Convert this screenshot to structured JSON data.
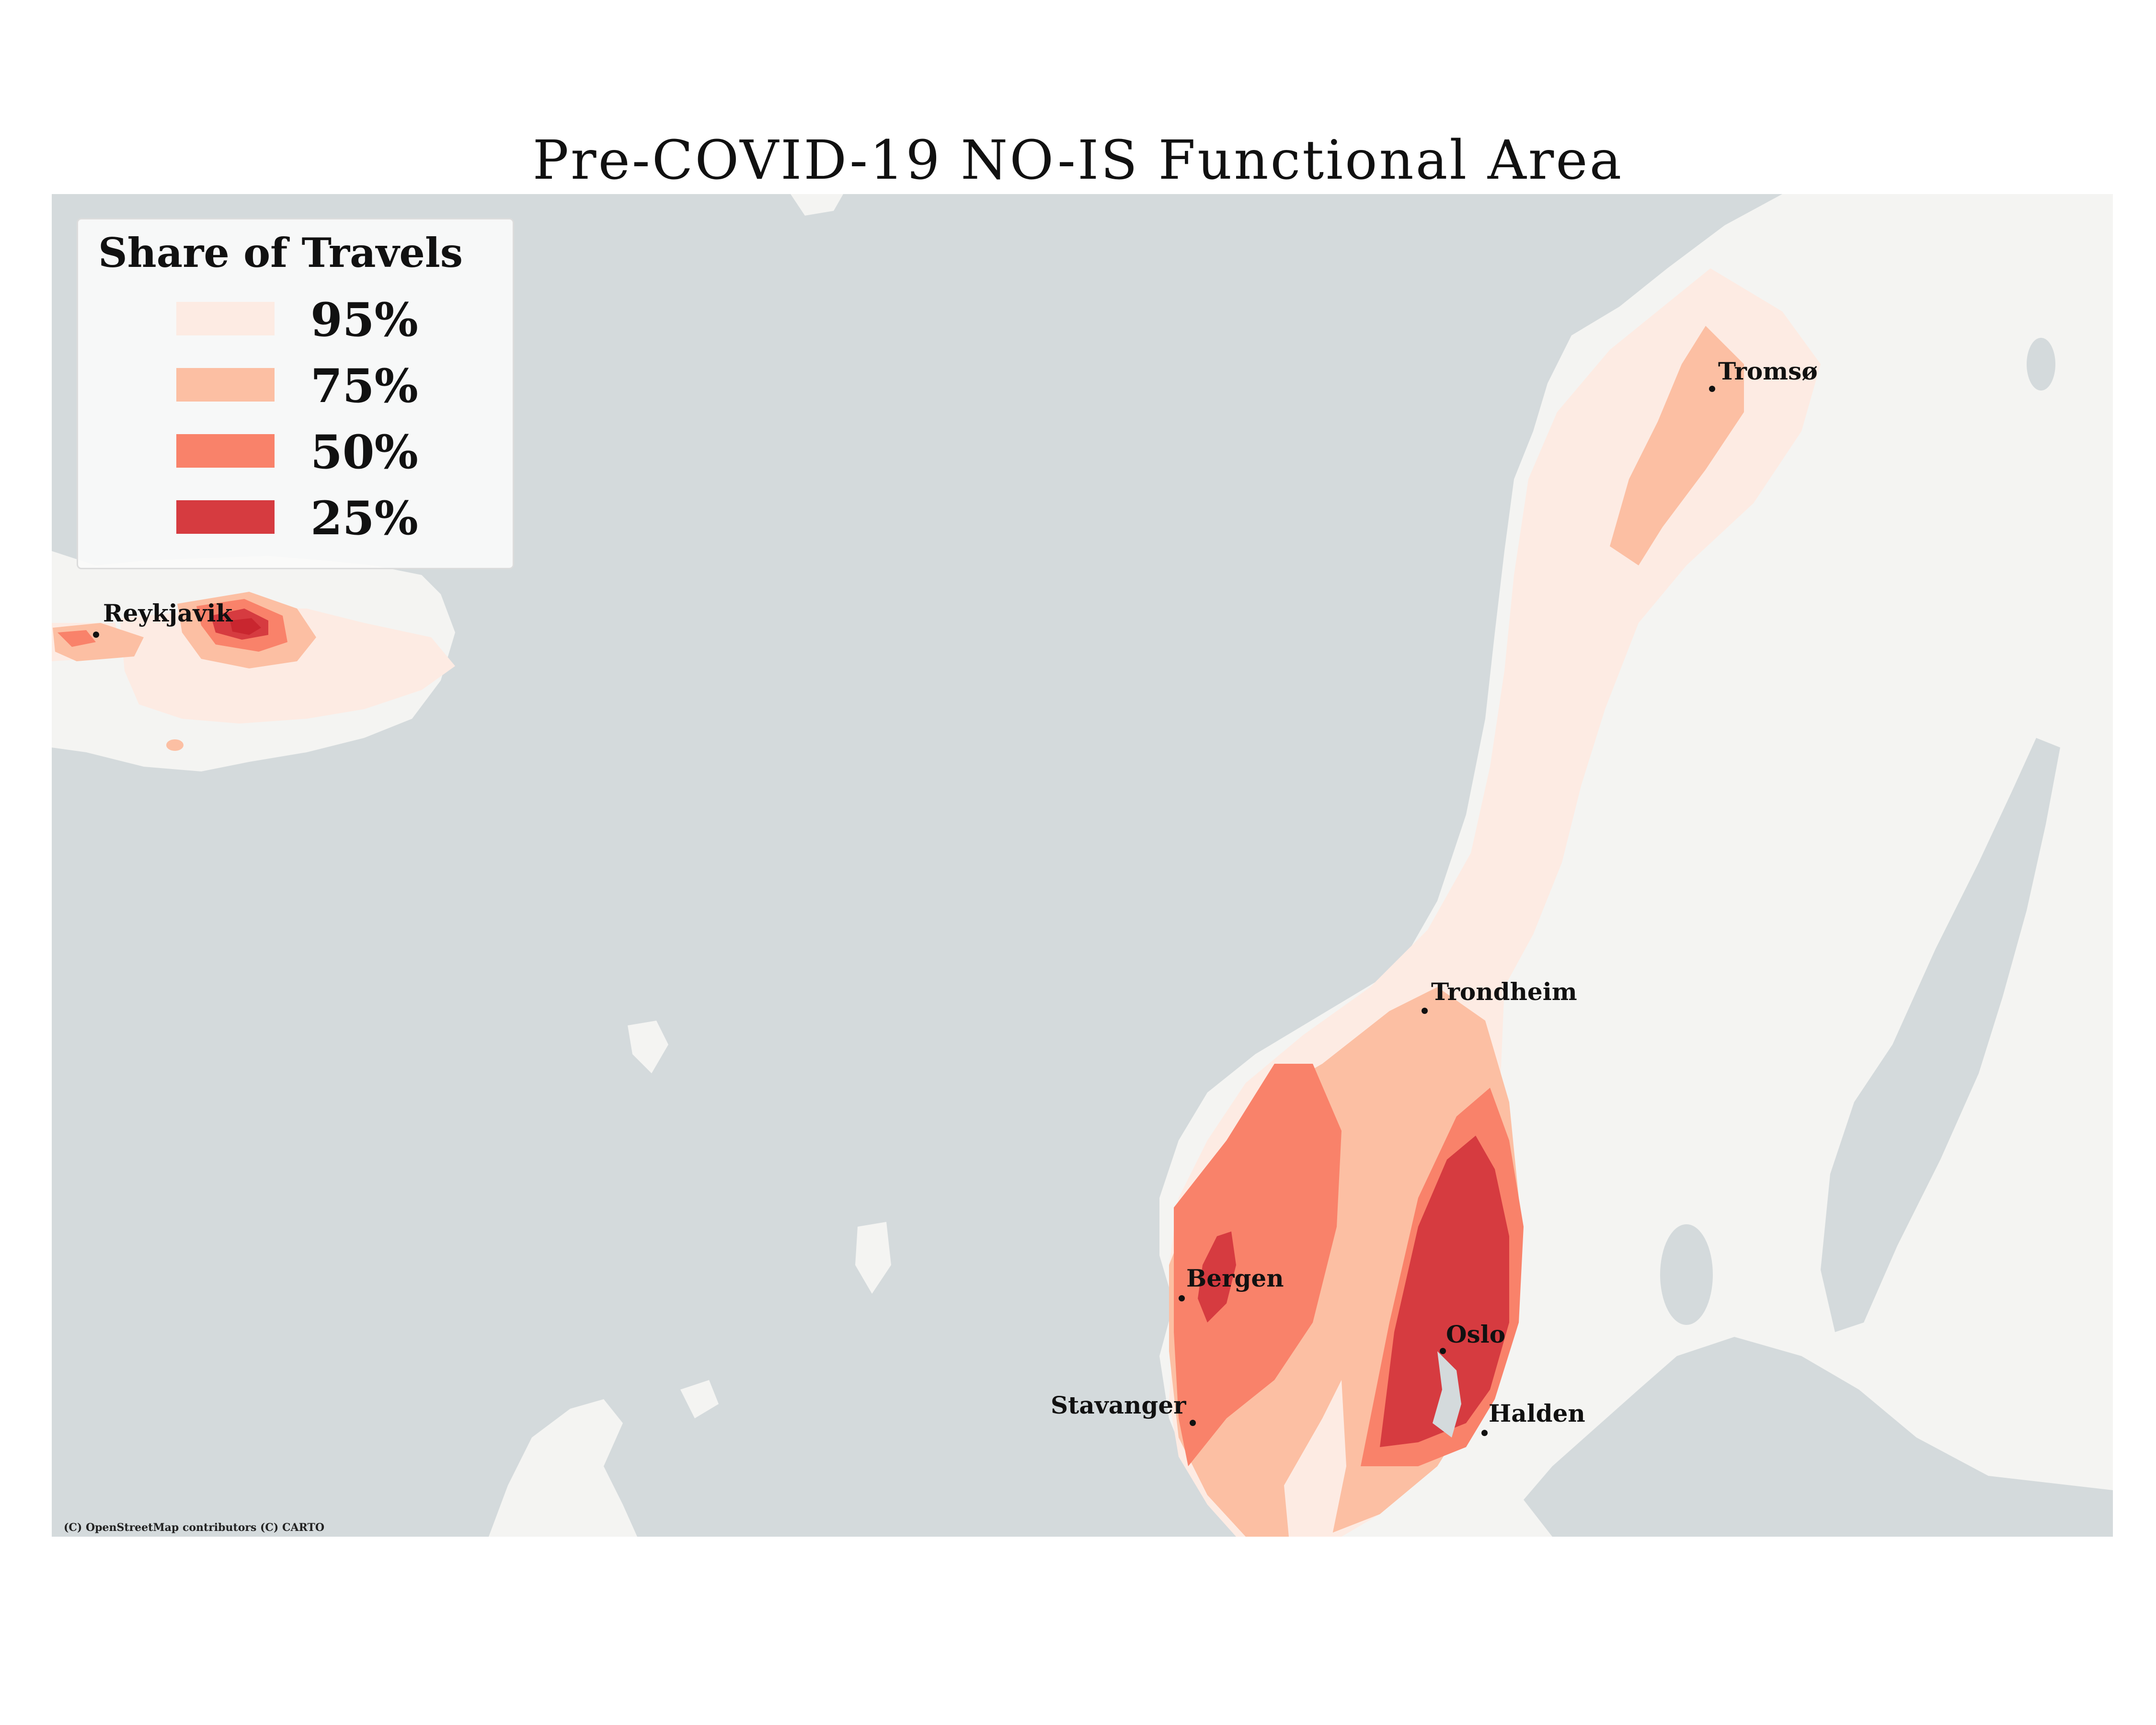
{
  "title": "Pre-COVID-19 NO-IS Functional Area",
  "legend": {
    "title": "Share of Travels",
    "items": [
      {
        "label": "95%",
        "color": "#fdebe3"
      },
      {
        "label": "75%",
        "color": "#fcbfa3"
      },
      {
        "label": "50%",
        "color": "#f9826a"
      },
      {
        "label": "25%",
        "color": "#d63b40"
      }
    ]
  },
  "colors": {
    "sea": "#d4dadc",
    "land": "#f4f4f2",
    "band95": "#fdebe3",
    "band75": "#fcbfa3",
    "band50": "#f9826a",
    "band25": "#d63b40",
    "band25_core": "#c9262f"
  },
  "cities": [
    {
      "name": "Reykjavik"
    },
    {
      "name": "Tromsø"
    },
    {
      "name": "Trondheim"
    },
    {
      "name": "Bergen"
    },
    {
      "name": "Oslo"
    },
    {
      "name": "Stavanger"
    },
    {
      "name": "Halden"
    }
  ],
  "attribution": "(C) OpenStreetMap contributors (C) CARTO"
}
